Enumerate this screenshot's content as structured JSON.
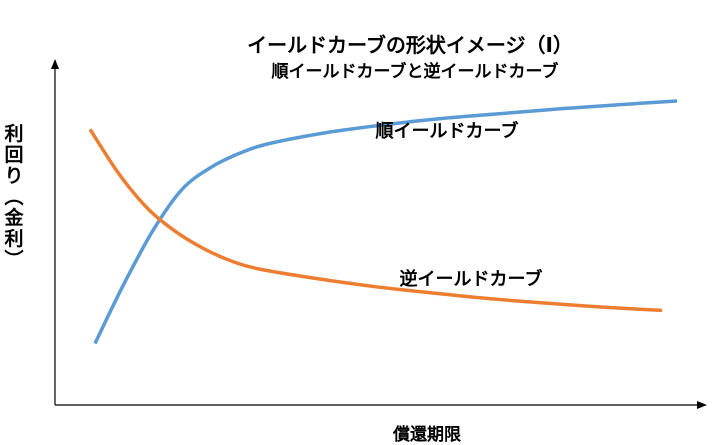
{
  "chart_data": {
    "type": "line",
    "title": "イールドカーブの形状イメージ（Ⅰ）",
    "subtitle": "順イールドカーブと逆イールドカーブ",
    "xlabel": "償還期限",
    "ylabel": "利回り（金利）",
    "xlim": [
      0,
      10
    ],
    "ylim": [
      0,
      10
    ],
    "grid": false,
    "legend": "none",
    "series": [
      {
        "name": "順イールドカーブ",
        "color": "#5b9bd5",
        "x": [
          0,
          0.5,
          1.0,
          1.5,
          2.0,
          2.5,
          3.0,
          4.0,
          5.0,
          6.0,
          7.0,
          8.0,
          9.0,
          10.0
        ],
        "values": [
          1.0,
          2.9,
          4.6,
          5.9,
          6.6,
          7.05,
          7.35,
          7.7,
          7.95,
          8.15,
          8.3,
          8.45,
          8.58,
          8.7
        ]
      },
      {
        "name": "逆イールドカーブ",
        "color": "#ed7d31",
        "x": [
          0,
          0.5,
          1.0,
          1.5,
          2.0,
          2.5,
          3.0,
          4.0,
          5.0,
          6.0,
          7.0,
          8.0,
          9.0,
          10.0
        ],
        "values": [
          7.8,
          6.4,
          5.3,
          4.55,
          4.0,
          3.6,
          3.35,
          3.05,
          2.8,
          2.6,
          2.42,
          2.28,
          2.15,
          2.05
        ]
      }
    ]
  }
}
